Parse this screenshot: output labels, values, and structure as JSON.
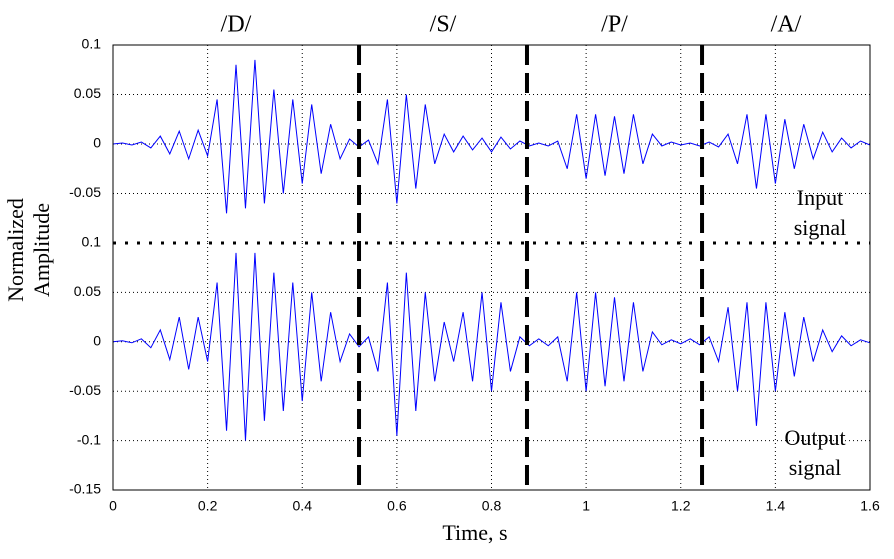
{
  "chart_data": [
    {
      "type": "line",
      "phonemes": [
        "/D/",
        "/S/",
        "/P/",
        "/A/"
      ],
      "dividers": [
        0.52,
        0.875,
        1.245
      ],
      "ylabel": [
        "Normalized",
        "Amplitude"
      ],
      "annotation": [
        "Input",
        "signal"
      ],
      "xlim": [
        0,
        1.6
      ],
      "xticks": [
        0,
        0.2,
        0.4,
        0.6,
        0.8,
        1,
        1.2,
        1.4,
        1.6
      ],
      "ylim": [
        -0.1,
        0.1
      ],
      "yticks": [
        -0.05,
        0,
        0.05,
        0.1
      ],
      "grid": true,
      "x": [
        0,
        0.02,
        0.04,
        0.06,
        0.08,
        0.1,
        0.12,
        0.14,
        0.16,
        0.18,
        0.2,
        0.22,
        0.24,
        0.26,
        0.28,
        0.3,
        0.32,
        0.34,
        0.36,
        0.38,
        0.4,
        0.42,
        0.44,
        0.46,
        0.48,
        0.5,
        0.52,
        0.54,
        0.56,
        0.58,
        0.6,
        0.62,
        0.64,
        0.66,
        0.68,
        0.7,
        0.72,
        0.74,
        0.76,
        0.78,
        0.8,
        0.82,
        0.84,
        0.86,
        0.88,
        0.9,
        0.92,
        0.94,
        0.96,
        0.98,
        1,
        1.02,
        1.04,
        1.06,
        1.08,
        1.1,
        1.12,
        1.14,
        1.16,
        1.18,
        1.2,
        1.22,
        1.24,
        1.26,
        1.28,
        1.3,
        1.32,
        1.34,
        1.36,
        1.38,
        1.4,
        1.42,
        1.44,
        1.46,
        1.48,
        1.5,
        1.52,
        1.54,
        1.56,
        1.58,
        1.6
      ],
      "series": [
        {
          "color": "#0000ff",
          "values": [
            0,
            0.001,
            -0.001,
            0.002,
            -0.004,
            0.008,
            -0.01,
            0.013,
            -0.015,
            0.014,
            -0.012,
            0.045,
            -0.07,
            0.08,
            -0.065,
            0.085,
            -0.06,
            0.055,
            -0.05,
            0.045,
            -0.04,
            0.04,
            -0.03,
            0.02,
            -0.015,
            0.005,
            -0.003,
            0.004,
            -0.02,
            0.045,
            -0.06,
            0.05,
            -0.045,
            0.04,
            -0.02,
            0.01,
            -0.008,
            0.008,
            -0.006,
            0.006,
            -0.008,
            0.007,
            -0.005,
            0.003,
            -0.002,
            0.001,
            -0.002,
            0.003,
            -0.025,
            0.03,
            -0.035,
            0.03,
            -0.032,
            0.028,
            -0.03,
            0.03,
            -0.02,
            0.01,
            -0.002,
            0.002,
            -0.001,
            0.001,
            -0.002,
            0.002,
            -0.003,
            0.01,
            -0.02,
            0.03,
            -0.045,
            0.03,
            -0.04,
            0.025,
            -0.025,
            0.02,
            -0.015,
            0.012,
            -0.008,
            0.006,
            -0.004,
            0.003,
            -0.001
          ]
        }
      ]
    },
    {
      "type": "line",
      "xlabel": "Time, s",
      "annotation": [
        "Output",
        "signal"
      ],
      "xlim": [
        0,
        1.6
      ],
      "xticks": [
        0,
        0.2,
        0.4,
        0.6,
        0.8,
        1,
        1.2,
        1.4,
        1.6
      ],
      "ylim": [
        -0.15,
        0.1
      ],
      "yticks": [
        -0.15,
        -0.1,
        -0.05,
        0,
        0.05,
        0.1
      ],
      "grid": true,
      "x": [
        0,
        0.02,
        0.04,
        0.06,
        0.08,
        0.1,
        0.12,
        0.14,
        0.16,
        0.18,
        0.2,
        0.22,
        0.24,
        0.26,
        0.28,
        0.3,
        0.32,
        0.34,
        0.36,
        0.38,
        0.4,
        0.42,
        0.44,
        0.46,
        0.48,
        0.5,
        0.52,
        0.54,
        0.56,
        0.58,
        0.6,
        0.62,
        0.64,
        0.66,
        0.68,
        0.7,
        0.72,
        0.74,
        0.76,
        0.78,
        0.8,
        0.82,
        0.84,
        0.86,
        0.88,
        0.9,
        0.92,
        0.94,
        0.96,
        0.98,
        1,
        1.02,
        1.04,
        1.06,
        1.08,
        1.1,
        1.12,
        1.14,
        1.16,
        1.18,
        1.2,
        1.22,
        1.24,
        1.26,
        1.28,
        1.3,
        1.32,
        1.34,
        1.36,
        1.38,
        1.4,
        1.42,
        1.44,
        1.46,
        1.48,
        1.5,
        1.52,
        1.54,
        1.56,
        1.58,
        1.6
      ],
      "series": [
        {
          "color": "#0000ff",
          "values": [
            0,
            0.001,
            -0.001,
            0.003,
            -0.006,
            0.012,
            -0.018,
            0.025,
            -0.028,
            0.025,
            -0.02,
            0.06,
            -0.09,
            0.09,
            -0.1,
            0.09,
            -0.08,
            0.07,
            -0.07,
            0.06,
            -0.06,
            0.05,
            -0.04,
            0.03,
            -0.02,
            0.008,
            -0.005,
            0.005,
            -0.03,
            0.06,
            -0.095,
            0.07,
            -0.07,
            0.05,
            -0.04,
            0.02,
            -0.02,
            0.03,
            -0.04,
            0.05,
            -0.05,
            0.04,
            -0.03,
            0.005,
            -0.004,
            0.003,
            -0.004,
            0.005,
            -0.04,
            0.05,
            -0.05,
            0.05,
            -0.045,
            0.045,
            -0.04,
            0.04,
            -0.03,
            0.01,
            -0.003,
            0.002,
            -0.002,
            0.003,
            -0.003,
            0.005,
            -0.02,
            0.035,
            -0.05,
            0.04,
            -0.085,
            0.04,
            -0.05,
            0.03,
            -0.035,
            0.025,
            -0.02,
            0.012,
            -0.01,
            0.006,
            -0.004,
            0.002,
            -0.001
          ]
        }
      ]
    }
  ]
}
